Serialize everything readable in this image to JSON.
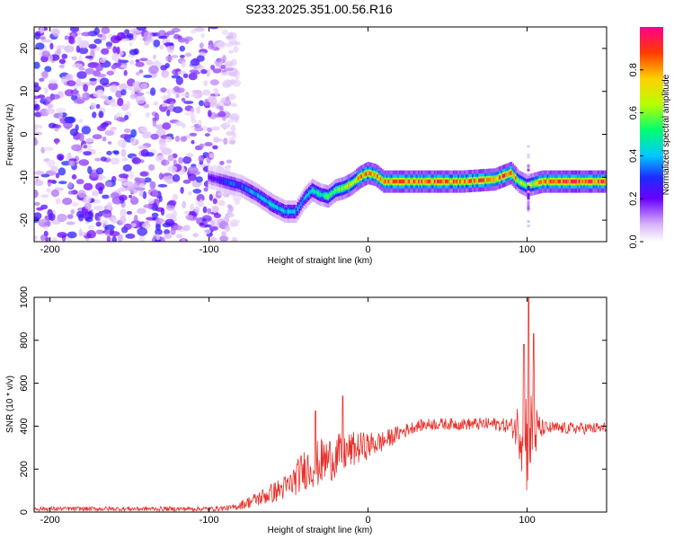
{
  "title": "S233.2025.351.00.56.R16",
  "chart_data": [
    {
      "type": "heatmap",
      "name": "spectrogram",
      "xlabel": "Height of straight line (km)",
      "ylabel": "Frequency (Hz)",
      "xlim": [
        -210,
        150
      ],
      "ylim": [
        -25,
        25
      ],
      "xticks": [
        -200,
        -100,
        0,
        100
      ],
      "yticks": [
        -20,
        -10,
        0,
        10,
        20
      ],
      "noise_region_x": [
        -210,
        -82
      ],
      "ridge": {
        "x": [
          -100,
          -90,
          -80,
          -70,
          -60,
          -52,
          -45,
          -40,
          -35,
          -30,
          -25,
          -20,
          -15,
          -10,
          -5,
          0,
          5,
          10,
          20,
          40,
          60,
          80,
          90,
          95,
          100,
          110,
          130,
          150
        ],
        "y": [
          -10,
          -11,
          -12,
          -14,
          -16.5,
          -18,
          -18,
          -15,
          -13,
          -14,
          -14.5,
          -13,
          -12.5,
          -11.5,
          -10,
          -9,
          -9.5,
          -11,
          -11,
          -11,
          -11,
          -10.5,
          -9,
          -11,
          -12,
          -11,
          -11,
          -11
        ],
        "amp": [
          0.2,
          0.3,
          0.35,
          0.4,
          0.45,
          0.45,
          0.4,
          0.4,
          0.45,
          0.5,
          0.55,
          0.6,
          0.7,
          0.75,
          0.8,
          0.85,
          0.8,
          0.85,
          0.9,
          0.9,
          0.85,
          0.9,
          0.9,
          0.7,
          0.6,
          0.85,
          0.95,
          0.9
        ]
      },
      "colorbar": {
        "label": "Normalized spectral amplitude",
        "ticks": [
          0.0,
          0.2,
          0.4,
          0.6,
          0.8
        ],
        "range": [
          0,
          1
        ]
      }
    },
    {
      "type": "line",
      "name": "snr",
      "xlabel": "Height of straight line (km)",
      "ylabel": "SNR (10 * v/v)",
      "xlim": [
        -210,
        150
      ],
      "ylim": [
        0,
        1000
      ],
      "xticks": [
        -200,
        -100,
        0,
        100
      ],
      "yticks": [
        0,
        200,
        400,
        600,
        800,
        1000
      ],
      "color": "#e8302a",
      "envelope": {
        "x": [
          -210,
          -100,
          -85,
          -70,
          -50,
          -40,
          -30,
          -20,
          -10,
          0,
          10,
          20,
          30,
          40,
          60,
          80,
          90,
          95,
          100,
          105,
          110,
          120,
          150
        ],
        "base": [
          15,
          15,
          20,
          60,
          120,
          200,
          230,
          260,
          290,
          310,
          330,
          370,
          400,
          410,
          410,
          410,
          400,
          390,
          350,
          370,
          390,
          390,
          390
        ],
        "jitter": [
          15,
          15,
          20,
          50,
          90,
          140,
          160,
          150,
          120,
          90,
          70,
          50,
          40,
          40,
          40,
          45,
          50,
          200,
          420,
          200,
          50,
          40,
          40
        ]
      },
      "peaks": [
        {
          "x": -33,
          "y": 470
        },
        {
          "x": -16,
          "y": 540
        },
        {
          "x": 101,
          "y": 1000
        },
        {
          "x": 98,
          "y": 780
        },
        {
          "x": 104,
          "y": 830
        }
      ]
    }
  ]
}
